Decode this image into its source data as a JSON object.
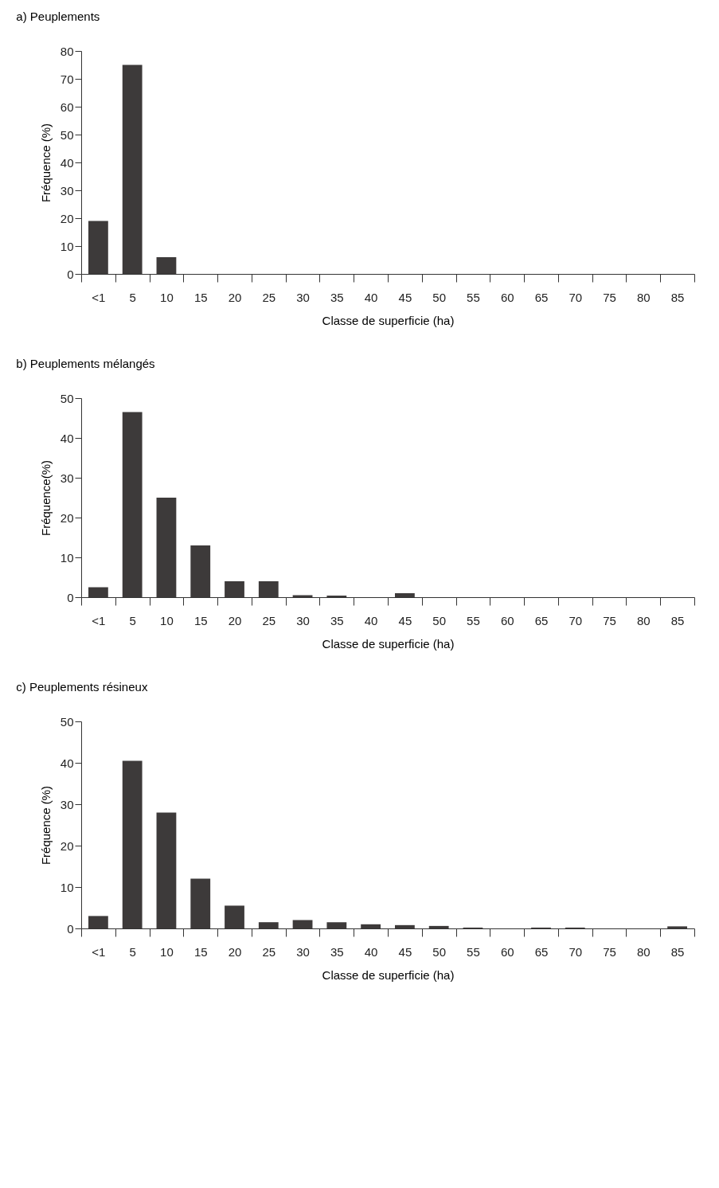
{
  "chart_data": [
    {
      "type": "bar",
      "title": "a)  Peuplements",
      "xlabel": "Classe de superficie (ha)",
      "ylabel": "Fréquence (%)",
      "categories": [
        "<1",
        "5",
        "10",
        "15",
        "20",
        "25",
        "30",
        "35",
        "40",
        "45",
        "50",
        "55",
        "60",
        "65",
        "70",
        "75",
        "80",
        "85"
      ],
      "values": [
        19,
        75,
        6,
        0,
        0,
        0,
        0,
        0,
        0,
        0,
        0,
        0,
        0,
        0,
        0,
        0,
        0,
        0
      ],
      "color": "#3d3a3a",
      "ylim": [
        0,
        80
      ],
      "yticks": [
        0,
        10,
        20,
        30,
        40,
        50,
        60,
        70,
        80
      ],
      "grid": false
    },
    {
      "type": "bar",
      "title": "b)  Peuplements mélangés",
      "xlabel": "Classe de superficie (ha)",
      "ylabel": "Fréquence(%)",
      "categories": [
        "<1",
        "5",
        "10",
        "15",
        "20",
        "25",
        "30",
        "35",
        "40",
        "45",
        "50",
        "55",
        "60",
        "65",
        "70",
        "75",
        "80",
        "85"
      ],
      "values": [
        2.5,
        46.5,
        25,
        13,
        4,
        4,
        0.5,
        0.4,
        0,
        1,
        0,
        0,
        0,
        0,
        0,
        0,
        0,
        0
      ],
      "color": "#3d3a3a",
      "ylim": [
        0,
        50
      ],
      "yticks": [
        0,
        10,
        20,
        30,
        40,
        50
      ],
      "grid": false
    },
    {
      "type": "bar",
      "title": "c)  Peuplements résineux",
      "xlabel": "Classe de superficie (ha)",
      "ylabel": "Fréquence (%)",
      "categories": [
        "<1",
        "5",
        "10",
        "15",
        "20",
        "25",
        "30",
        "35",
        "40",
        "45",
        "50",
        "55",
        "60",
        "65",
        "70",
        "75",
        "80",
        "85"
      ],
      "values": [
        3,
        40.5,
        28,
        12,
        5.5,
        1.5,
        2,
        1.5,
        1,
        0.8,
        0.6,
        0.2,
        0,
        0.2,
        0.2,
        0,
        0,
        0.5
      ],
      "color": "#3d3a3a",
      "ylim": [
        0,
        50
      ],
      "yticks": [
        0,
        10,
        20,
        30,
        40,
        50
      ],
      "grid": false
    }
  ]
}
